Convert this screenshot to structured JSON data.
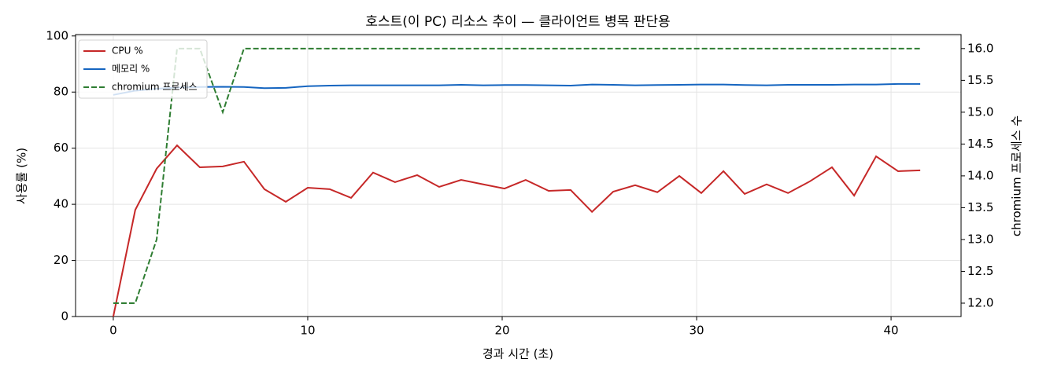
{
  "chart_data": {
    "type": "line",
    "title": "호스트(이 PC) 리소스 추이 — 클라이언트 병목 판단용",
    "xlabel": "경과 시간 (초)",
    "ylabel": "사용률 (%)",
    "y2label": "chromium 프로세스 수",
    "x": [
      0,
      1.13,
      2.23,
      3.28,
      4.45,
      5.63,
      6.72,
      7.77,
      8.87,
      10.0,
      11.13,
      12.23,
      13.36,
      14.49,
      15.63,
      16.76,
      17.89,
      19.03,
      20.12,
      21.21,
      22.39,
      23.52,
      24.62,
      25.71,
      26.84,
      27.98,
      29.11,
      30.24,
      31.38,
      32.47,
      33.6,
      34.7,
      35.83,
      36.96,
      38.1,
      39.23,
      40.36,
      41.5
    ],
    "series": [
      {
        "name": "CPU %",
        "color": "#c62828",
        "values": [
          0,
          38,
          52.7,
          61,
          53.2,
          53.5,
          55.2,
          45.4,
          40.9,
          45.9,
          45.4,
          42.3,
          51.3,
          47.9,
          50.4,
          46.2,
          48.7,
          47.1,
          45.6,
          48.7,
          44.8,
          45.1,
          37.3,
          44.5,
          46.8,
          44.3,
          50.1,
          44,
          51.8,
          43.7,
          47.1,
          44,
          48.2,
          53.2,
          43.1,
          57.1,
          51.8,
          52.1
        ]
      },
      {
        "name": "메모리 %",
        "color": "#1565c0",
        "values": [
          79,
          80.5,
          81.2,
          81.6,
          81.8,
          81.9,
          81.8,
          81.4,
          81.5,
          82.1,
          82.3,
          82.4,
          82.4,
          82.4,
          82.4,
          82.4,
          82.6,
          82.4,
          82.5,
          82.5,
          82.4,
          82.3,
          82.7,
          82.6,
          82.4,
          82.5,
          82.6,
          82.7,
          82.7,
          82.5,
          82.4,
          82.6,
          82.6,
          82.6,
          82.7,
          82.7,
          82.9,
          82.9
        ]
      },
      {
        "name": "chromium 프로세스",
        "color": "#2e7d32",
        "linestyle": "dashed",
        "axis": "y2",
        "values": [
          12,
          12,
          13,
          16,
          16,
          15,
          16,
          16,
          16,
          16,
          16,
          16,
          16,
          16,
          16,
          16,
          16,
          16,
          16,
          16,
          16,
          16,
          16,
          16,
          16,
          16,
          16,
          16,
          16,
          16,
          16,
          16,
          16,
          16,
          16,
          16,
          16,
          16
        ]
      }
    ],
    "xlim": [
      -1.94,
      43.6
    ],
    "xticks": [
      0,
      10,
      20,
      30,
      40
    ],
    "ylim": [
      0,
      100.5
    ],
    "yticks": [
      0,
      20,
      40,
      60,
      80,
      100
    ],
    "y2lim": [
      11.79,
      16.22
    ],
    "y2ticks": [
      {
        "value": 12,
        "label": "12.0"
      },
      12.5,
      {
        "value": 13,
        "label": "13.0"
      },
      13.5,
      {
        "value": 14,
        "label": "14.0"
      },
      14.5,
      {
        "value": 15,
        "label": "15.0"
      },
      15.5,
      {
        "value": 16,
        "label": "16.0"
      }
    ],
    "grid": true,
    "legend": "upper left"
  }
}
